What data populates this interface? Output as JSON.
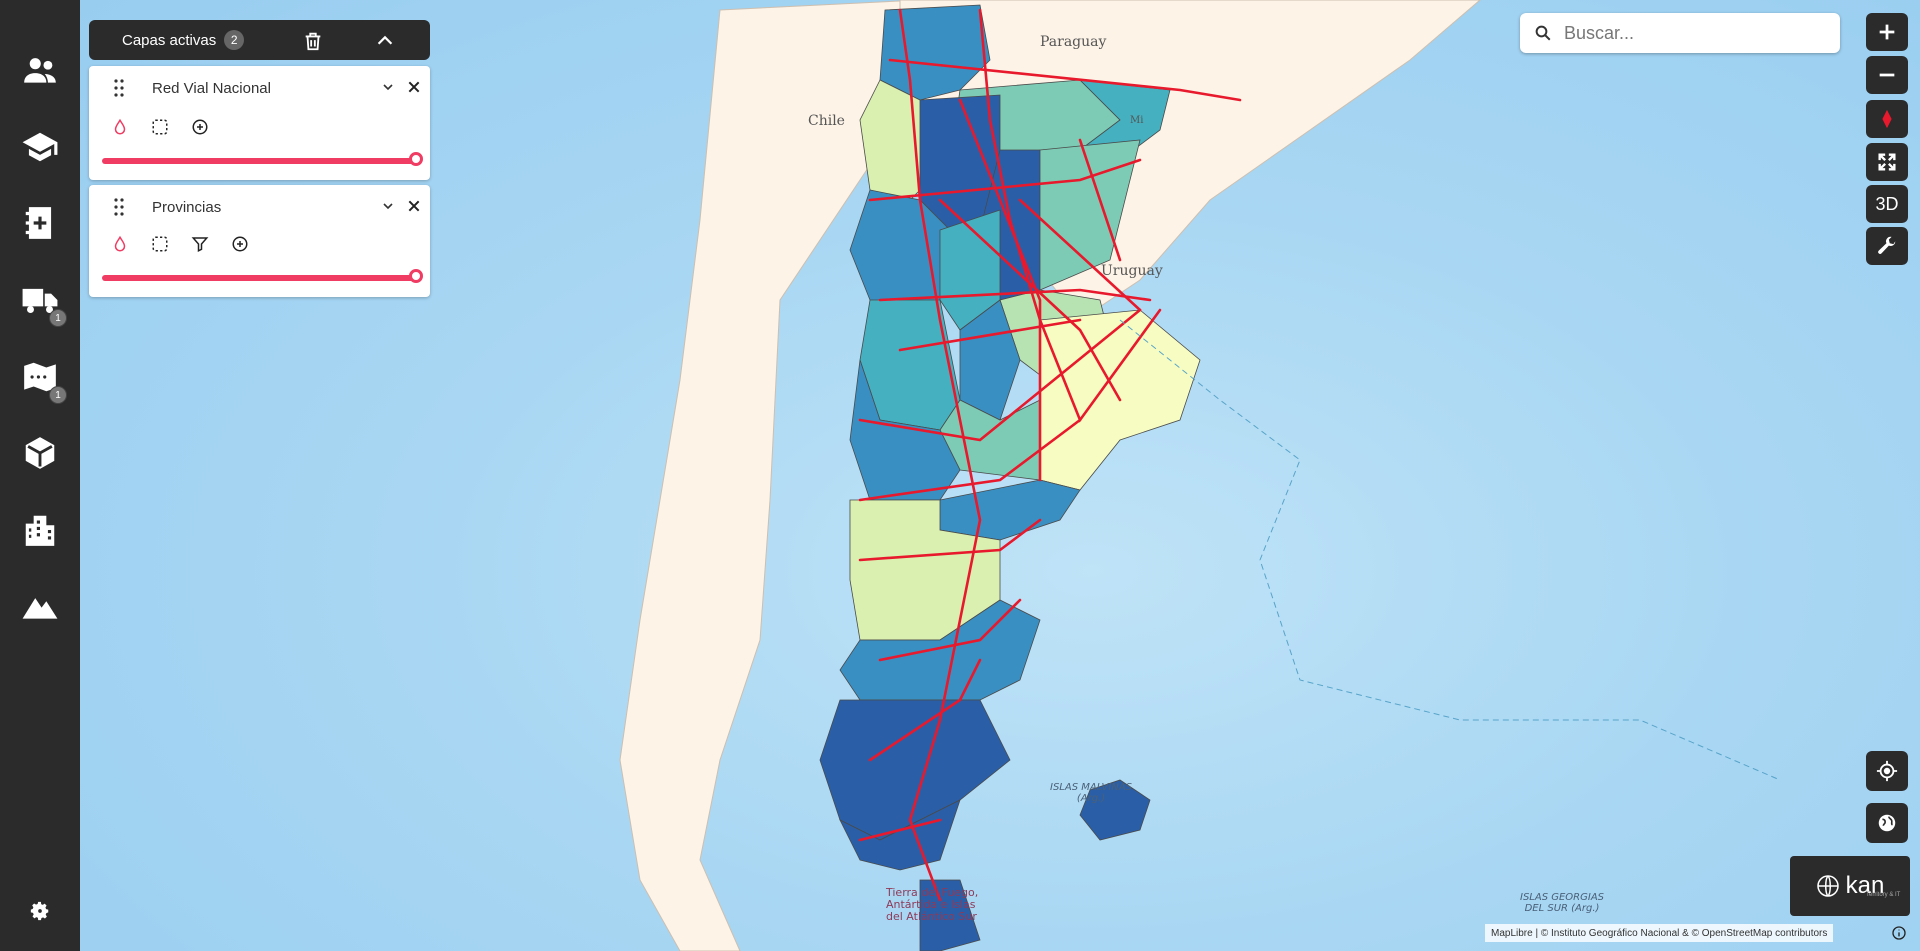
{
  "sidebar": {
    "items": [
      {
        "icon": "users-icon",
        "badge": ""
      },
      {
        "icon": "graduation-cap-icon",
        "badge": ""
      },
      {
        "icon": "notebook-add-icon",
        "badge": ""
      },
      {
        "icon": "truck-icon",
        "badge": "1"
      },
      {
        "icon": "map-icon",
        "badge": "1"
      },
      {
        "icon": "cube-icon",
        "badge": ""
      },
      {
        "icon": "buildings-icon",
        "badge": ""
      },
      {
        "icon": "mountain-icon",
        "badge": ""
      }
    ],
    "settings_icon": "gear-icon"
  },
  "layers_panel": {
    "title": "Capas activas",
    "count": "2",
    "layers": [
      {
        "name": "Red Vial Nacional"
      },
      {
        "name": "Provincias"
      }
    ]
  },
  "search": {
    "placeholder": "Buscar..."
  },
  "controls": {
    "three_d_label": "3D"
  },
  "map_labels": {
    "paraguay": "Paraguay",
    "chile": "Chile",
    "uruguay": "Uruguay",
    "malvinas": "ISLAS MALVINAS",
    "malvinas_sub": "(Arg.)",
    "georgias": "ISLAS GEORGIAS",
    "georgias_2": "DEL SUR (Arg.)",
    "tierra_fuego": "Tierra del Fuego,",
    "tierra_fuego_2": "Antártida e Islas",
    "tierra_fuego_3": "del Atlántico Sur",
    "misiones_partial": "Mi"
  },
  "logo": {
    "text": "kan",
    "subtitle": "Territory & IT"
  },
  "attribution": "MapLibre | © Instituto Geográfico Nacional & © OpenStreetMap contributors",
  "colors": {
    "accent": "#f03c63",
    "dark": "#2b2b2b",
    "road": "#e8192c"
  }
}
